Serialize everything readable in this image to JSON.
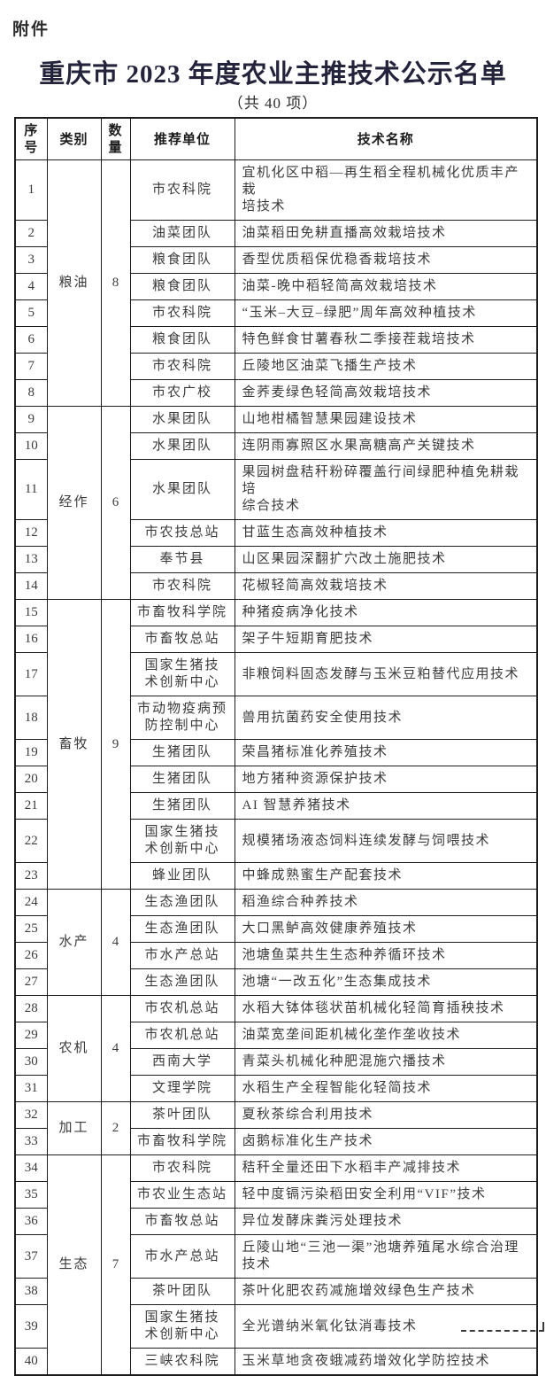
{
  "page": {
    "attachment_label": "附件",
    "title": "重庆市 2023 年度农业主推技术公示名单",
    "subtitle": "（共 40 项）"
  },
  "table": {
    "headers": {
      "index": "序\n号",
      "category": "类别",
      "count": "数\n量",
      "unit": "推荐单位",
      "tech": "技术名称"
    },
    "groups": [
      {
        "category": "粮油",
        "count": "8",
        "rows": [
          {
            "no": "1",
            "unit": "市农科院",
            "tech": "宜机化区中稻—再生稻全程机械化优质丰产栽\n培技术"
          },
          {
            "no": "2",
            "unit": "油菜团队",
            "tech": "油菜稻田免耕直播高效栽培技术"
          },
          {
            "no": "3",
            "unit": "粮食团队",
            "tech": "香型优质稻保优稳香栽培技术"
          },
          {
            "no": "4",
            "unit": "粮食团队",
            "tech": "油菜-晚中稻轻简高效栽培技术"
          },
          {
            "no": "5",
            "unit": "市农科院",
            "tech": "“玉米–大豆–绿肥”周年高效种植技术"
          },
          {
            "no": "6",
            "unit": "粮食团队",
            "tech": "特色鲜食甘薯春秋二季接茬栽培技术"
          },
          {
            "no": "7",
            "unit": "市农科院",
            "tech": "丘陵地区油菜飞播生产技术"
          },
          {
            "no": "8",
            "unit": "市农广校",
            "tech": "金荞麦绿色轻简高效栽培技术"
          }
        ]
      },
      {
        "category": "经作",
        "count": "6",
        "rows": [
          {
            "no": "9",
            "unit": "水果团队",
            "tech": "山地柑橘智慧果园建设技术"
          },
          {
            "no": "10",
            "unit": "水果团队",
            "tech": "连阴雨寡照区水果高糖高产关键技术"
          },
          {
            "no": "11",
            "unit": "水果团队",
            "tech": "果园树盘秸秆粉碎覆盖行间绿肥种植免耕栽培\n综合技术"
          },
          {
            "no": "12",
            "unit": "市农技总站",
            "tech": "甘蓝生态高效种植技术"
          },
          {
            "no": "13",
            "unit": "奉节县",
            "tech": "山区果园深翻扩穴改土施肥技术"
          },
          {
            "no": "14",
            "unit": "市农科院",
            "tech": "花椒轻简高效栽培技术"
          }
        ]
      },
      {
        "category": "畜牧",
        "count": "9",
        "rows": [
          {
            "no": "15",
            "unit": "市畜牧科学院",
            "tech": "种猪疫病净化技术"
          },
          {
            "no": "16",
            "unit": "市畜牧总站",
            "tech": "架子牛短期育肥技术"
          },
          {
            "no": "17",
            "unit": "国家生猪技\n术创新中心",
            "tech": "非粮饲料固态发酵与玉米豆粕替代应用技术"
          },
          {
            "no": "18",
            "unit": "市动物疫病预\n防控制中心",
            "tech": "兽用抗菌药安全使用技术"
          },
          {
            "no": "19",
            "unit": "生猪团队",
            "tech": "荣昌猪标准化养殖技术"
          },
          {
            "no": "20",
            "unit": "生猪团队",
            "tech": "地方猪种资源保护技术"
          },
          {
            "no": "21",
            "unit": "生猪团队",
            "tech": "AI 智慧养猪技术"
          },
          {
            "no": "22",
            "unit": "国家生猪技\n术创新中心",
            "tech": "规模猪场液态饲料连续发酵与饲喂技术"
          },
          {
            "no": "23",
            "unit": "蜂业团队",
            "tech": "中蜂成熟蜜生产配套技术"
          }
        ]
      },
      {
        "category": "水产",
        "count": "4",
        "rows": [
          {
            "no": "24",
            "unit": "生态渔团队",
            "tech": "稻渔综合种养技术"
          },
          {
            "no": "25",
            "unit": "生态渔团队",
            "tech": "大口黑鲈高效健康养殖技术"
          },
          {
            "no": "26",
            "unit": "市水产总站",
            "tech": "池塘鱼菜共生生态种养循环技术"
          },
          {
            "no": "27",
            "unit": "生态渔团队",
            "tech": "池塘“一改五化”生态集成技术"
          }
        ]
      },
      {
        "category": "农机",
        "count": "4",
        "rows": [
          {
            "no": "28",
            "unit": "市农机总站",
            "tech": "水稻大钵体毯状苗机械化轻简育插秧技术"
          },
          {
            "no": "29",
            "unit": "市农机总站",
            "tech": "油菜宽垄间距机械化垄作垄收技术"
          },
          {
            "no": "30",
            "unit": "西南大学",
            "tech": "青菜头机械化种肥混施穴播技术"
          },
          {
            "no": "31",
            "unit": "文理学院",
            "tech": "水稻生产全程智能化轻简技术"
          }
        ]
      },
      {
        "category": "加工",
        "count": "2",
        "rows": [
          {
            "no": "32",
            "unit": "茶叶团队",
            "tech": "夏秋茶综合利用技术"
          },
          {
            "no": "33",
            "unit": "市畜牧科学院",
            "tech": "卤鹅标准化生产技术"
          }
        ]
      },
      {
        "category": "生态",
        "count": "7",
        "rows": [
          {
            "no": "34",
            "unit": "市农科院",
            "tech": "秸秆全量还田下水稻丰产减排技术"
          },
          {
            "no": "35",
            "unit": "市农业生态站",
            "tech": "轻中度镉污染稻田安全利用“VIF”技术"
          },
          {
            "no": "36",
            "unit": "市畜牧总站",
            "tech": "异位发酵床粪污处理技术"
          },
          {
            "no": "37",
            "unit": "市水产总站",
            "tech": "丘陵山地“三池一渠”池塘养殖尾水综合治理\n技术"
          },
          {
            "no": "38",
            "unit": "茶叶团队",
            "tech": "茶叶化肥农药减施增效绿色生产技术"
          },
          {
            "no": "39",
            "unit": "国家生猪技\n术创新中心",
            "tech": "全光谱纳米氧化钛消毒技术"
          },
          {
            "no": "40",
            "unit": "三峡农科院",
            "tech": "玉米草地贪夜蛾减药增效化学防控技术"
          }
        ]
      }
    ]
  },
  "colors": {
    "title_text": "#23233b",
    "body_text": "#3b3b3b",
    "border": "#1c1c1c"
  }
}
